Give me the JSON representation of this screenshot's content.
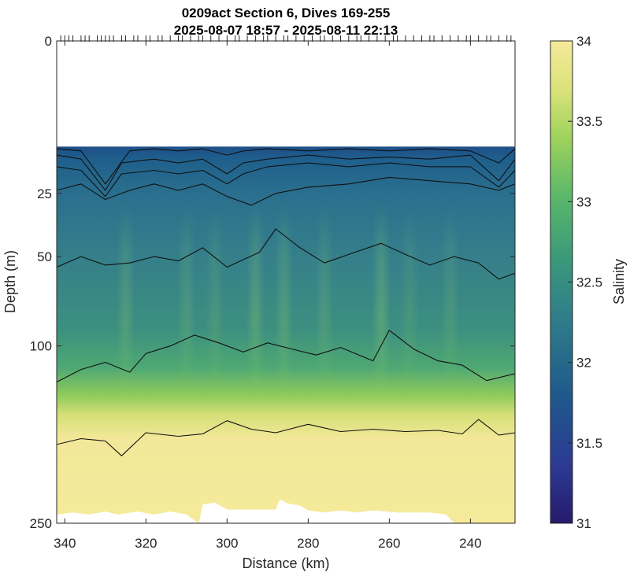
{
  "chart_data": {
    "type": "heatmap",
    "title": [
      "0209act Section 6, Dives 169-255",
      "2025-08-07 18:57 - 2025-08-11 22:13"
    ],
    "xlabel": "Distance (km)",
    "ylabel": "Depth (m)",
    "colorbar_label": "Salinity",
    "x_reversed": true,
    "xlim": [
      342,
      229
    ],
    "x_ticks": [
      340,
      320,
      300,
      280,
      260,
      240
    ],
    "y_scale": "sqrt",
    "ylim": [
      0,
      250
    ],
    "y_ticks": [
      0,
      25,
      50,
      100,
      250
    ],
    "clim": [
      31,
      34
    ],
    "colorbar_ticks": [
      31,
      31.5,
      32,
      32.5,
      33,
      33.5,
      34
    ],
    "colormap": [
      "#271a6c",
      "#2c3a93",
      "#1f5a8c",
      "#2f7c8a",
      "#3a9a7a",
      "#5bb86a",
      "#9fd35c",
      "#dbe27a",
      "#f5ea9a"
    ],
    "data_top_depth": 12,
    "contour_lines": [
      {
        "depth_profile": [
          [
            342,
            12.5
          ],
          [
            336,
            13
          ],
          [
            330,
            22
          ],
          [
            324,
            13
          ],
          [
            318,
            12.5
          ],
          [
            312,
            13
          ],
          [
            306,
            12.5
          ],
          [
            300,
            14
          ],
          [
            296,
            13
          ],
          [
            290,
            12.5
          ],
          [
            280,
            13
          ],
          [
            270,
            12.5
          ],
          [
            260,
            13
          ],
          [
            250,
            12.5
          ],
          [
            240,
            13
          ],
          [
            233,
            16
          ],
          [
            229,
            12.5
          ]
        ]
      },
      {
        "depth_profile": [
          [
            342,
            14
          ],
          [
            336,
            15
          ],
          [
            330,
            24
          ],
          [
            326,
            16
          ],
          [
            318,
            15
          ],
          [
            312,
            16
          ],
          [
            306,
            15
          ],
          [
            300,
            19
          ],
          [
            296,
            16
          ],
          [
            290,
            15
          ],
          [
            280,
            14
          ],
          [
            270,
            15
          ],
          [
            260,
            14.5
          ],
          [
            250,
            15
          ],
          [
            240,
            14
          ],
          [
            233,
            21
          ],
          [
            229,
            15
          ]
        ]
      },
      {
        "depth_profile": [
          [
            342,
            17
          ],
          [
            336,
            18
          ],
          [
            330,
            26
          ],
          [
            326,
            19
          ],
          [
            318,
            18
          ],
          [
            312,
            19
          ],
          [
            306,
            18
          ],
          [
            300,
            22
          ],
          [
            296,
            19
          ],
          [
            290,
            17
          ],
          [
            280,
            16
          ],
          [
            270,
            17
          ],
          [
            260,
            16
          ],
          [
            250,
            17
          ],
          [
            240,
            17
          ],
          [
            233,
            23
          ],
          [
            229,
            18
          ]
        ]
      },
      {
        "depth_profile": [
          [
            342,
            24
          ],
          [
            336,
            22
          ],
          [
            330,
            27
          ],
          [
            324,
            24
          ],
          [
            318,
            22
          ],
          [
            312,
            24
          ],
          [
            306,
            22
          ],
          [
            300,
            26
          ],
          [
            294,
            29
          ],
          [
            288,
            25
          ],
          [
            280,
            23
          ],
          [
            270,
            22
          ],
          [
            260,
            20
          ],
          [
            250,
            21
          ],
          [
            240,
            22
          ],
          [
            233,
            24
          ],
          [
            229,
            22
          ]
        ]
      },
      {
        "depth_profile": [
          [
            342,
            55
          ],
          [
            336,
            50
          ],
          [
            330,
            54
          ],
          [
            324,
            53
          ],
          [
            318,
            50
          ],
          [
            312,
            52
          ],
          [
            306,
            46
          ],
          [
            300,
            55
          ],
          [
            292,
            48
          ],
          [
            288,
            38
          ],
          [
            282,
            46
          ],
          [
            276,
            53
          ],
          [
            270,
            49
          ],
          [
            262,
            44
          ],
          [
            256,
            49
          ],
          [
            250,
            54
          ],
          [
            244,
            50
          ],
          [
            238,
            53
          ],
          [
            233,
            61
          ],
          [
            229,
            58
          ]
        ]
      },
      {
        "depth_profile": [
          [
            342,
            125
          ],
          [
            336,
            116
          ],
          [
            330,
            111
          ],
          [
            324,
            118
          ],
          [
            320,
            105
          ],
          [
            314,
            100
          ],
          [
            308,
            93
          ],
          [
            302,
            98
          ],
          [
            296,
            104
          ],
          [
            290,
            98
          ],
          [
            284,
            102
          ],
          [
            278,
            106
          ],
          [
            272,
            101
          ],
          [
            264,
            110
          ],
          [
            260,
            90
          ],
          [
            254,
            102
          ],
          [
            248,
            110
          ],
          [
            242,
            113
          ],
          [
            236,
            124
          ],
          [
            229,
            119
          ]
        ]
      },
      {
        "depth_profile": [
          [
            342,
            175
          ],
          [
            336,
            170
          ],
          [
            330,
            172
          ],
          [
            326,
            185
          ],
          [
            320,
            165
          ],
          [
            312,
            168
          ],
          [
            306,
            166
          ],
          [
            300,
            155
          ],
          [
            294,
            162
          ],
          [
            288,
            165
          ],
          [
            280,
            158
          ],
          [
            272,
            164
          ],
          [
            264,
            162
          ],
          [
            256,
            164
          ],
          [
            248,
            163
          ],
          [
            242,
            166
          ],
          [
            238,
            154
          ],
          [
            233,
            167
          ],
          [
            229,
            165
          ]
        ]
      }
    ],
    "vertical_bands": [
      {
        "x": 325,
        "strength": 0.5
      },
      {
        "x": 310,
        "strength": 0.4
      },
      {
        "x": 303,
        "strength": 0.35
      },
      {
        "x": 293,
        "strength": 0.6
      },
      {
        "x": 286,
        "strength": 0.55
      },
      {
        "x": 276,
        "strength": 0.4
      },
      {
        "x": 262,
        "strength": 0.65
      },
      {
        "x": 255,
        "strength": 0.3
      },
      {
        "x": 245,
        "strength": 0.35
      }
    ],
    "bottom_mask": [
      [
        342,
        241
      ],
      [
        338,
        239
      ],
      [
        334,
        241
      ],
      [
        330,
        238
      ],
      [
        327,
        241
      ],
      [
        322,
        238
      ],
      [
        318,
        241
      ],
      [
        314,
        238
      ],
      [
        310,
        241
      ],
      [
        307,
        250
      ],
      [
        306,
        231
      ],
      [
        303,
        229
      ],
      [
        300,
        236
      ],
      [
        296,
        236
      ],
      [
        288,
        236
      ],
      [
        287,
        226
      ],
      [
        285,
        230
      ],
      [
        282,
        232
      ],
      [
        280,
        237
      ],
      [
        276,
        239
      ],
      [
        272,
        237
      ],
      [
        268,
        239
      ],
      [
        264,
        237
      ],
      [
        258,
        239
      ],
      [
        250,
        239
      ],
      [
        246,
        241
      ],
      [
        244,
        250
      ]
    ],
    "dive_positions": [
      341,
      340,
      339,
      338,
      336,
      335,
      334,
      332,
      331,
      330,
      329,
      328,
      326,
      325,
      323,
      322,
      320,
      319,
      317,
      316,
      314,
      312,
      311,
      309,
      307,
      306,
      304,
      302,
      300,
      298,
      297,
      295,
      293,
      291,
      290,
      288,
      286,
      285,
      283,
      281,
      279,
      277,
      276,
      274,
      272,
      270,
      268,
      267,
      265,
      263,
      261,
      259,
      258,
      256,
      254,
      252,
      250,
      249,
      247,
      245,
      243,
      241,
      240,
      238,
      236,
      235,
      233,
      231,
      230
    ]
  }
}
